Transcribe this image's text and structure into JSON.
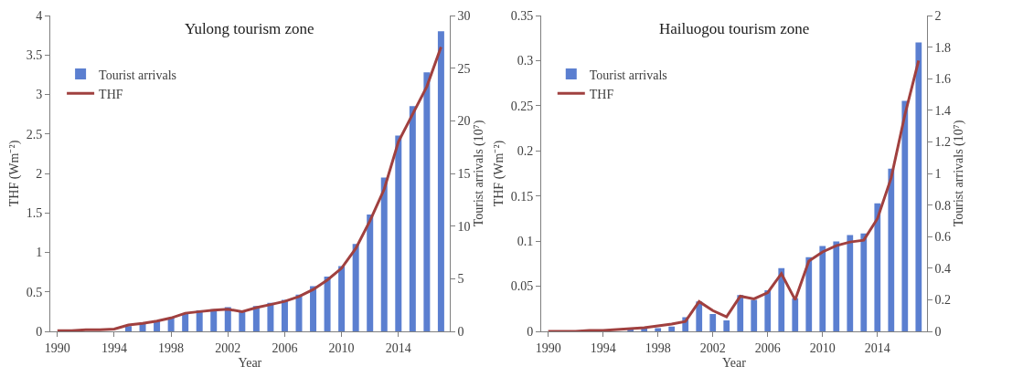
{
  "chart_data": [
    {
      "type": "bar",
      "title": "Yulong tourism zone",
      "xlabel": "Year",
      "ylabel": "THF (Wm⁻²)",
      "y2label": "Tourist arrivals (10⁷)",
      "x": [
        1990,
        1991,
        1992,
        1993,
        1994,
        1995,
        1996,
        1997,
        1998,
        1999,
        2000,
        2001,
        2002,
        2003,
        2004,
        2005,
        2006,
        2007,
        2008,
        2009,
        2010,
        2011,
        2012,
        2013,
        2014,
        2015,
        2016,
        2017
      ],
      "series": [
        {
          "name": "Tourist arrivals",
          "axis": "y2",
          "color": "#5b7fd0",
          "values": [
            0,
            0,
            null,
            null,
            null,
            0.5,
            0.8,
            1.0,
            1.3,
            1.7,
            2.0,
            2.1,
            2.3,
            2.0,
            2.4,
            2.7,
            3.0,
            3.5,
            4.3,
            5.2,
            6.2,
            8.3,
            11.1,
            14.6,
            18.6,
            21.4,
            24.6,
            28.5
          ]
        },
        {
          "name": "THF",
          "type": "line",
          "axis": "y",
          "color": "#a0403f",
          "values": [
            0.01,
            0.01,
            0.02,
            0.02,
            0.03,
            0.08,
            0.1,
            0.13,
            0.17,
            0.23,
            0.25,
            0.27,
            0.28,
            0.25,
            0.3,
            0.34,
            0.38,
            0.44,
            0.53,
            0.65,
            0.8,
            1.05,
            1.4,
            1.8,
            2.4,
            2.75,
            3.1,
            3.6
          ]
        }
      ],
      "xlim": [
        1989.5,
        2017.6
      ],
      "xticks": [
        1990,
        1994,
        1998,
        2002,
        2006,
        2010,
        2014
      ],
      "ylim": [
        0,
        4
      ],
      "yticks": [
        0,
        0.5,
        1,
        1.5,
        2,
        2.5,
        3,
        3.5,
        4
      ],
      "y2lim": [
        0,
        30
      ],
      "y2ticks": [
        0,
        5,
        10,
        15,
        20,
        25,
        30
      ],
      "legend": "top left",
      "marker": "none",
      "line_style": "solid"
    },
    {
      "type": "bar",
      "title": "Hailuogou tourism zone",
      "xlabel": "Year",
      "ylabel": "THF (Wm⁻²)",
      "y2label": "Tourist arrivals (10⁷)",
      "x": [
        1990,
        1991,
        1992,
        1993,
        1994,
        1995,
        1996,
        1997,
        1998,
        1999,
        2000,
        2001,
        2002,
        2003,
        2004,
        2005,
        2006,
        2007,
        2008,
        2009,
        2010,
        2011,
        2012,
        2013,
        2014,
        2015,
        2016,
        2017
      ],
      "series": [
        {
          "name": "Tourist arrivals",
          "axis": "y2",
          "color": "#5b7fd0",
          "values": [
            0,
            0,
            0,
            null,
            null,
            null,
            0.01,
            0.02,
            0.02,
            0.03,
            0.09,
            0.19,
            0.11,
            0.07,
            0.23,
            0.2,
            0.26,
            0.4,
            0.21,
            0.47,
            0.54,
            0.57,
            0.61,
            0.62,
            0.81,
            1.03,
            1.46,
            1.83
          ]
        },
        {
          "name": "THF",
          "type": "line",
          "axis": "y",
          "color": "#a0403f",
          "values": [
            0,
            0,
            0,
            0.001,
            0.001,
            0.002,
            0.003,
            0.004,
            0.006,
            0.008,
            0.011,
            0.033,
            0.023,
            0.016,
            0.039,
            0.036,
            0.043,
            0.064,
            0.035,
            0.078,
            0.088,
            0.095,
            0.099,
            0.101,
            0.125,
            0.17,
            0.24,
            0.3
          ]
        }
      ],
      "xlim": [
        1989.5,
        2017.6
      ],
      "xticks": [
        1990,
        1994,
        1998,
        2002,
        2006,
        2010,
        2014
      ],
      "ylim": [
        0,
        0.35
      ],
      "yticks": [
        0,
        0.05,
        0.1,
        0.15,
        0.2,
        0.25,
        0.3,
        0.35
      ],
      "y2lim": [
        0,
        2
      ],
      "y2ticks": [
        0,
        0.2,
        0.4,
        0.6,
        0.8,
        1,
        1.2,
        1.4,
        1.6,
        1.8,
        2
      ],
      "legend": "top left",
      "marker": "none",
      "line_style": "solid"
    }
  ]
}
